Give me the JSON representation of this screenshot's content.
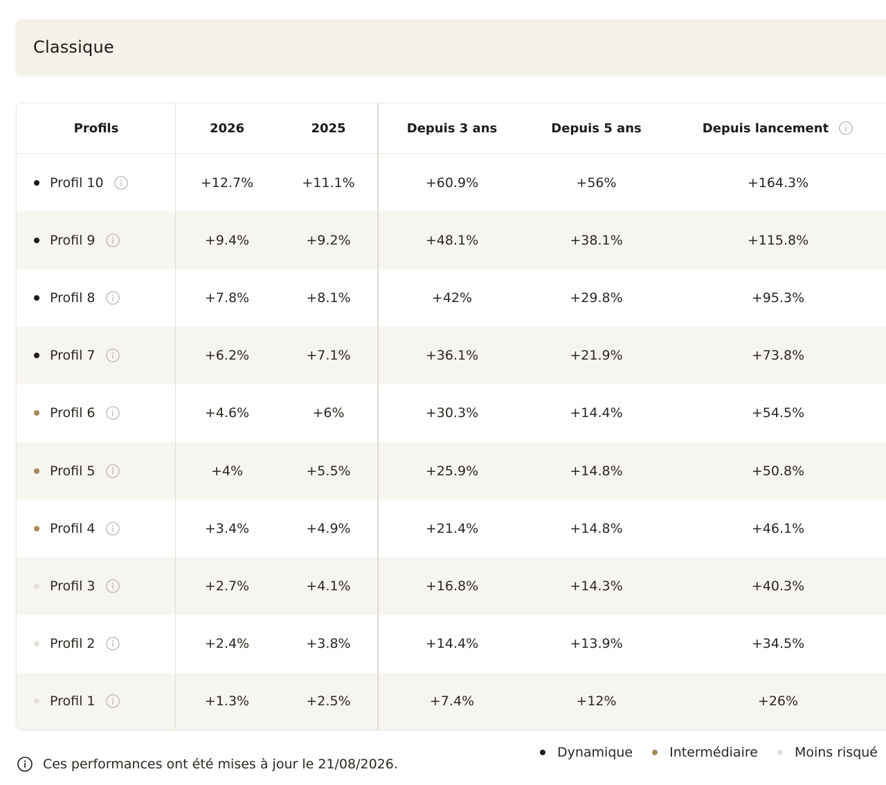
{
  "section": {
    "title": "Classique"
  },
  "table": {
    "headers": {
      "profiles": "Profils",
      "y2026": "2026",
      "y2025": "2025",
      "since3": "Depuis 3 ans",
      "since5": "Depuis 5 ans",
      "launch": "Depuis lancement"
    },
    "rows": [
      {
        "profile": "Profil 10",
        "tier": "Dynamique",
        "y2026": "+12.7%",
        "y2025": "+11.1%",
        "since3": "+60.9%",
        "since5": "+56%",
        "launch": "+164.3%"
      },
      {
        "profile": "Profil 9",
        "tier": "Dynamique",
        "y2026": "+9.4%",
        "y2025": "+9.2%",
        "since3": "+48.1%",
        "since5": "+38.1%",
        "launch": "+115.8%"
      },
      {
        "profile": "Profil 8",
        "tier": "Dynamique",
        "y2026": "+7.8%",
        "y2025": "+8.1%",
        "since3": "+42%",
        "since5": "+29.8%",
        "launch": "+95.3%"
      },
      {
        "profile": "Profil 7",
        "tier": "Dynamique",
        "y2026": "+6.2%",
        "y2025": "+7.1%",
        "since3": "+36.1%",
        "since5": "+21.9%",
        "launch": "+73.8%"
      },
      {
        "profile": "Profil 6",
        "tier": "Intermédiaire",
        "y2026": "+4.6%",
        "y2025": "+6%",
        "since3": "+30.3%",
        "since5": "+14.4%",
        "launch": "+54.5%"
      },
      {
        "profile": "Profil 5",
        "tier": "Intermédiaire",
        "y2026": "+4%",
        "y2025": "+5.5%",
        "since3": "+25.9%",
        "since5": "+14.8%",
        "launch": "+50.8%"
      },
      {
        "profile": "Profil 4",
        "tier": "Intermédiaire",
        "y2026": "+3.4%",
        "y2025": "+4.9%",
        "since3": "+21.4%",
        "since5": "+14.8%",
        "launch": "+46.1%"
      },
      {
        "profile": "Profil 3",
        "tier": "Moins risqué",
        "y2026": "+2.7%",
        "y2025": "+4.1%",
        "since3": "+16.8%",
        "since5": "+14.3%",
        "launch": "+40.3%"
      },
      {
        "profile": "Profil 2",
        "tier": "Moins risqué",
        "y2026": "+2.4%",
        "y2025": "+3.8%",
        "since3": "+14.4%",
        "since5": "+13.9%",
        "launch": "+34.5%"
      },
      {
        "profile": "Profil 1",
        "tier": "Moins risqué",
        "y2026": "+1.3%",
        "y2025": "+2.5%",
        "since3": "+7.4%",
        "since5": "+12%",
        "launch": "+26%"
      }
    ]
  },
  "tiers": {
    "Dynamique": "#1e1a15",
    "Intermédiaire": "#a68a5b",
    "Moins risqué": "#e4e0d8"
  },
  "legend": [
    {
      "label": "Dynamique",
      "color": "#1e1a15"
    },
    {
      "label": "Intermédiaire",
      "color": "#a68a5b"
    },
    {
      "label": "Moins risqué",
      "color": "#e4e0d8"
    }
  ],
  "footer": {
    "note": "Ces performances ont été mises à jour le 21/08/2026."
  },
  "icons": {
    "info": "info-circle-icon"
  }
}
